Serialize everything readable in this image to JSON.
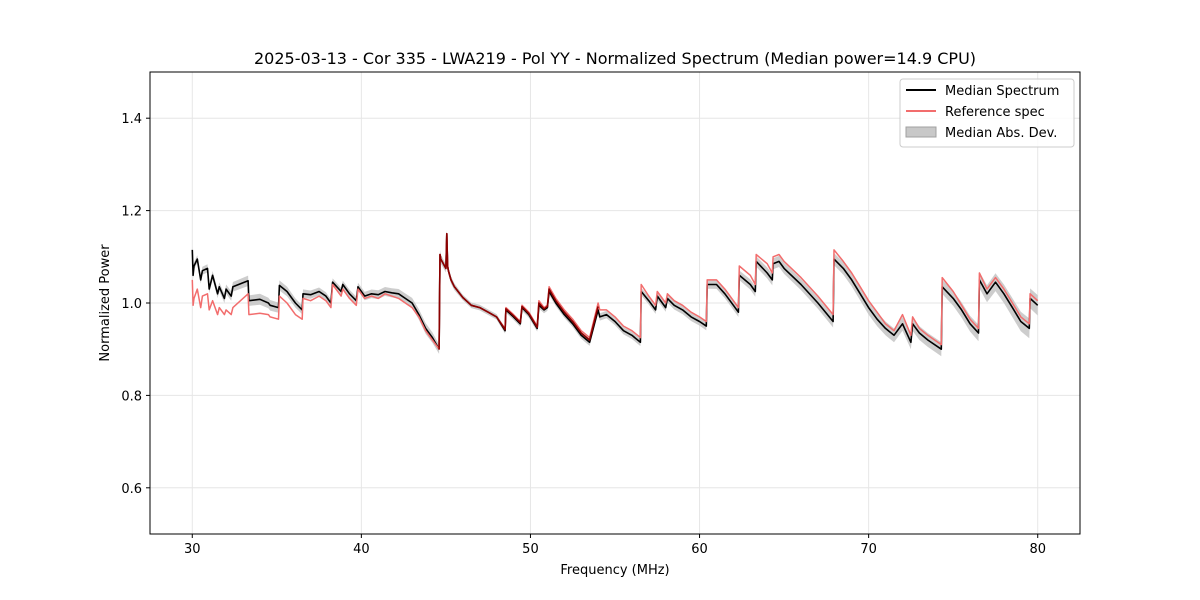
{
  "chart_data": {
    "type": "line",
    "title": "2025-03-13 - Cor 335 - LWA219 - Pol YY - Normalized Spectrum (Median power=14.9 CPU)",
    "xlabel": "Frequency (MHz)",
    "ylabel": "Normalized Power",
    "xlim": [
      27.5,
      82.5
    ],
    "ylim": [
      0.5,
      1.5
    ],
    "xticks": [
      30,
      40,
      50,
      60,
      70,
      80
    ],
    "yticks": [
      0.6,
      0.8,
      1.0,
      1.2,
      1.4
    ],
    "grid": true,
    "legend": {
      "position": "top-right",
      "entries": [
        "Median Spectrum",
        "Reference spec",
        "Median Abs. Dev."
      ]
    },
    "colors": {
      "median": "#000000",
      "reference": "#f26d6d",
      "overlap": "#8b0000",
      "mad_band": "#c8c8c8"
    },
    "series": [
      {
        "name": "Median Spectrum",
        "x": [
          30.0,
          30.05,
          30.1,
          30.3,
          30.5,
          30.6,
          30.9,
          31.0,
          31.2,
          31.5,
          31.6,
          31.9,
          32.0,
          32.3,
          32.4,
          33.3,
          33.35,
          34.0,
          34.5,
          34.6,
          35.1,
          35.15,
          35.6,
          36.1,
          36.5,
          36.55,
          37.0,
          37.5,
          37.9,
          38.2,
          38.3,
          38.8,
          38.9,
          39.3,
          39.7,
          39.8,
          40.2,
          40.6,
          41.0,
          41.4,
          41.8,
          42.2,
          42.6,
          43.0,
          43.4,
          43.8,
          44.2,
          44.6,
          44.65,
          44.7,
          45.0,
          45.05,
          45.1,
          45.15,
          45.3,
          45.5,
          46.0,
          46.5,
          47.0,
          47.5,
          48.0,
          48.5,
          48.55,
          49.0,
          49.4,
          49.5,
          49.9,
          50.4,
          50.5,
          50.8,
          51.0,
          51.1,
          51.5,
          52.0,
          52.5,
          53.0,
          53.5,
          54.0,
          54.1,
          54.5,
          55.0,
          55.5,
          56.0,
          56.5,
          56.55,
          57.0,
          57.4,
          57.5,
          58.0,
          58.1,
          58.5,
          59.0,
          59.5,
          60.0,
          60.4,
          60.45,
          61.0,
          61.5,
          62.0,
          62.3,
          62.35,
          63.0,
          63.3,
          63.35,
          64.0,
          64.3,
          64.35,
          64.7,
          65.0,
          66.0,
          67.0,
          67.9,
          67.95,
          68.5,
          69.0,
          69.5,
          70.0,
          70.5,
          71.0,
          71.5,
          72.0,
          72.5,
          72.6,
          73.0,
          73.5,
          74.3,
          74.35,
          75.0,
          75.5,
          76.0,
          76.5,
          76.55,
          77.0,
          77.5,
          78.0,
          78.5,
          79.0,
          79.5,
          79.55,
          80.0
        ],
        "values": [
          1.115,
          1.06,
          1.08,
          1.095,
          1.05,
          1.07,
          1.075,
          1.03,
          1.06,
          1.02,
          1.035,
          1.01,
          1.03,
          1.015,
          1.035,
          1.048,
          1.005,
          1.008,
          1.0,
          0.995,
          0.99,
          1.038,
          1.025,
          1.0,
          0.985,
          1.02,
          1.018,
          1.025,
          1.015,
          1.0,
          1.045,
          1.025,
          1.04,
          1.02,
          1.005,
          1.035,
          1.015,
          1.02,
          1.018,
          1.025,
          1.022,
          1.02,
          1.01,
          1.0,
          0.975,
          0.945,
          0.925,
          0.9,
          1.105,
          1.095,
          1.075,
          1.15,
          1.08,
          1.07,
          1.05,
          1.035,
          1.012,
          0.995,
          0.99,
          0.98,
          0.97,
          0.94,
          0.985,
          0.97,
          0.955,
          0.99,
          0.975,
          0.945,
          0.995,
          0.985,
          0.99,
          1.025,
          1.0,
          0.975,
          0.955,
          0.93,
          0.915,
          0.985,
          0.97,
          0.975,
          0.96,
          0.94,
          0.93,
          0.915,
          1.025,
          1.005,
          0.985,
          1.015,
          0.99,
          1.01,
          0.995,
          0.985,
          0.97,
          0.96,
          0.95,
          1.04,
          1.04,
          1.02,
          0.995,
          0.98,
          1.06,
          1.04,
          1.025,
          1.09,
          1.065,
          1.05,
          1.085,
          1.09,
          1.075,
          1.04,
          1.0,
          0.96,
          1.095,
          1.075,
          1.05,
          1.02,
          0.99,
          0.965,
          0.945,
          0.93,
          0.955,
          0.915,
          0.955,
          0.935,
          0.92,
          0.9,
          1.035,
          1.01,
          0.985,
          0.955,
          0.935,
          1.05,
          1.02,
          1.045,
          1.02,
          0.99,
          0.96,
          0.945,
          1.01,
          0.995
        ]
      },
      {
        "name": "Reference spec",
        "x": [
          30.0,
          30.05,
          30.1,
          30.3,
          30.5,
          30.6,
          30.9,
          31.0,
          31.2,
          31.5,
          31.6,
          31.9,
          32.0,
          32.3,
          32.4,
          33.3,
          33.35,
          34.0,
          34.5,
          34.6,
          35.1,
          35.15,
          35.6,
          36.1,
          36.5,
          36.55,
          37.0,
          37.5,
          37.9,
          38.2,
          38.3,
          38.8,
          38.9,
          39.3,
          39.7,
          39.8,
          40.2,
          40.6,
          41.0,
          41.4,
          41.8,
          42.2,
          42.6,
          43.0,
          43.4,
          43.8,
          44.2,
          44.6,
          44.65,
          44.7,
          45.0,
          45.05,
          45.1,
          45.15,
          45.3,
          45.5,
          46.0,
          46.5,
          47.0,
          47.5,
          48.0,
          48.5,
          48.55,
          49.0,
          49.4,
          49.5,
          49.9,
          50.4,
          50.5,
          50.8,
          51.0,
          51.1,
          51.5,
          52.0,
          52.5,
          53.0,
          53.5,
          54.0,
          54.1,
          54.5,
          55.0,
          55.5,
          56.0,
          56.5,
          56.55,
          57.0,
          57.4,
          57.5,
          58.0,
          58.1,
          58.5,
          59.0,
          59.5,
          60.0,
          60.4,
          60.45,
          61.0,
          61.5,
          62.0,
          62.3,
          62.35,
          63.0,
          63.3,
          63.35,
          64.0,
          64.3,
          64.35,
          64.7,
          65.0,
          66.0,
          67.0,
          67.9,
          67.95,
          68.5,
          69.0,
          69.5,
          70.0,
          70.5,
          71.0,
          71.5,
          72.0,
          72.5,
          72.6,
          73.0,
          73.5,
          74.3,
          74.35,
          75.0,
          75.5,
          76.0,
          76.5,
          76.55,
          77.0,
          77.5,
          78.0,
          78.5,
          79.0,
          79.5,
          79.55,
          80.0
        ],
        "values": [
          1.05,
          0.995,
          1.01,
          1.03,
          0.99,
          1.015,
          1.02,
          0.985,
          1.005,
          0.975,
          0.99,
          0.975,
          0.985,
          0.975,
          0.99,
          1.02,
          0.975,
          0.978,
          0.975,
          0.97,
          0.965,
          1.015,
          1.0,
          0.975,
          0.965,
          1.01,
          1.005,
          1.015,
          1.005,
          0.99,
          1.04,
          1.015,
          1.03,
          1.01,
          0.995,
          1.03,
          1.01,
          1.015,
          1.01,
          1.02,
          1.015,
          1.01,
          1.0,
          0.99,
          0.97,
          0.94,
          0.92,
          0.9,
          1.105,
          1.095,
          1.075,
          1.15,
          1.08,
          1.07,
          1.05,
          1.035,
          1.012,
          0.995,
          0.99,
          0.98,
          0.97,
          0.945,
          0.99,
          0.975,
          0.96,
          0.995,
          0.98,
          0.95,
          1.005,
          0.99,
          0.995,
          1.035,
          1.01,
          0.985,
          0.965,
          0.94,
          0.925,
          1.0,
          0.985,
          0.985,
          0.97,
          0.95,
          0.94,
          0.925,
          1.04,
          1.015,
          0.995,
          1.025,
          1.0,
          1.02,
          1.005,
          0.995,
          0.98,
          0.97,
          0.96,
          1.05,
          1.05,
          1.03,
          1.005,
          0.99,
          1.08,
          1.06,
          1.04,
          1.105,
          1.085,
          1.065,
          1.1,
          1.105,
          1.09,
          1.055,
          1.015,
          0.975,
          1.115,
          1.09,
          1.065,
          1.035,
          1.005,
          0.98,
          0.955,
          0.94,
          0.975,
          0.93,
          0.97,
          0.945,
          0.93,
          0.91,
          1.055,
          1.025,
          0.995,
          0.965,
          0.945,
          1.065,
          1.03,
          1.055,
          1.03,
          1.0,
          0.97,
          0.955,
          1.02,
          1.005
        ]
      },
      {
        "name": "Median Abs. Dev.",
        "x": [
          30.0,
          32.0,
          34.0,
          36.0,
          38.0,
          40.0,
          42.0,
          44.0,
          46.0,
          48.0,
          50.0,
          52.0,
          54.0,
          56.0,
          58.0,
          60.0,
          62.0,
          64.0,
          66.0,
          68.0,
          70.0,
          72.0,
          74.0,
          76.0,
          78.0,
          80.0
        ],
        "values": [
          0.008,
          0.01,
          0.012,
          0.01,
          0.008,
          0.009,
          0.01,
          0.012,
          0.006,
          0.006,
          0.007,
          0.007,
          0.008,
          0.008,
          0.009,
          0.009,
          0.01,
          0.012,
          0.012,
          0.013,
          0.015,
          0.015,
          0.015,
          0.017,
          0.02,
          0.022
        ]
      }
    ]
  }
}
